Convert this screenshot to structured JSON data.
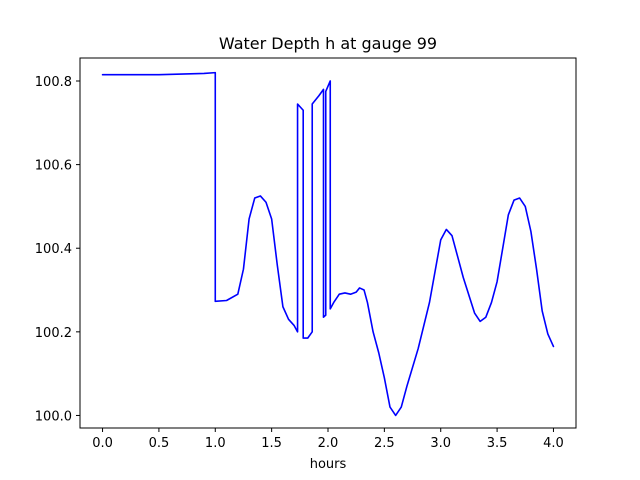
{
  "chart_data": {
    "type": "line",
    "title": "Water Depth h at gauge 99",
    "xlabel": "hours",
    "ylabel": "",
    "xlim": [
      -0.2,
      4.2
    ],
    "ylim": [
      99.97,
      100.855
    ],
    "xticks": [
      0.0,
      0.5,
      1.0,
      1.5,
      2.0,
      2.5,
      3.0,
      3.5,
      4.0
    ],
    "xtick_labels": [
      "0.0",
      "0.5",
      "1.0",
      "1.5",
      "2.0",
      "2.5",
      "3.0",
      "3.5",
      "4.0"
    ],
    "yticks": [
      100.0,
      100.2,
      100.4,
      100.6,
      100.8
    ],
    "ytick_labels": [
      "100.0",
      "100.2",
      "100.4",
      "100.6",
      "100.8"
    ],
    "grid": false,
    "legend": "none",
    "series": [
      {
        "color": "#0000ff",
        "x": [
          0.0,
          0.5,
          0.9,
          1.0,
          1.0,
          1.1,
          1.2,
          1.25,
          1.3,
          1.35,
          1.4,
          1.45,
          1.5,
          1.55,
          1.6,
          1.65,
          1.7,
          1.73,
          1.73,
          1.78,
          1.78,
          1.82,
          1.86,
          1.86,
          1.92,
          1.96,
          1.96,
          1.98,
          1.98,
          2.02,
          2.02,
          2.05,
          2.1,
          2.15,
          2.2,
          2.25,
          2.28,
          2.32,
          2.35,
          2.4,
          2.45,
          2.5,
          2.55,
          2.6,
          2.65,
          2.7,
          2.8,
          2.9,
          3.0,
          3.05,
          3.1,
          3.15,
          3.2,
          3.3,
          3.35,
          3.4,
          3.45,
          3.5,
          3.55,
          3.6,
          3.65,
          3.7,
          3.75,
          3.8,
          3.85,
          3.9,
          3.95,
          4.0
        ],
        "y": [
          100.815,
          100.815,
          100.818,
          100.82,
          100.273,
          100.275,
          100.29,
          100.35,
          100.47,
          100.52,
          100.525,
          100.51,
          100.47,
          100.36,
          100.26,
          100.23,
          100.215,
          100.2,
          100.745,
          100.73,
          100.185,
          100.185,
          100.2,
          100.745,
          100.765,
          100.78,
          100.235,
          100.24,
          100.775,
          100.8,
          100.255,
          100.27,
          100.29,
          100.293,
          100.29,
          100.295,
          100.305,
          100.3,
          100.27,
          100.2,
          100.15,
          100.09,
          100.02,
          100.0,
          100.02,
          100.07,
          100.16,
          100.27,
          100.42,
          100.445,
          100.43,
          100.38,
          100.33,
          100.245,
          100.225,
          100.235,
          100.27,
          100.32,
          100.4,
          100.48,
          100.515,
          100.52,
          100.5,
          100.44,
          100.35,
          100.25,
          100.195,
          100.165
        ]
      }
    ]
  }
}
